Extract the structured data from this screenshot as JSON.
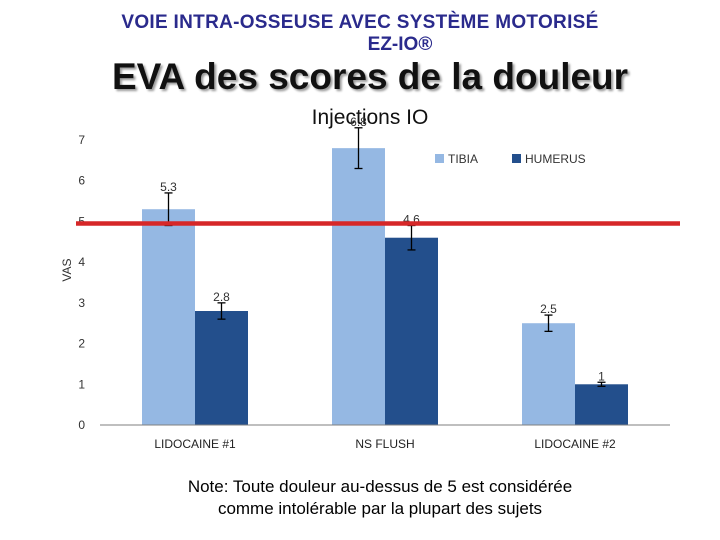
{
  "header": {
    "line1": "VOIE INTRA-OSSEUSE AVEC SYSTÈME MOTORISÉ",
    "line2": "EZ-IO®",
    "title": "EVA des scores de la douleur"
  },
  "note": {
    "line1": "Note:  Toute douleur au-dessus de 5 est considérée",
    "line2": "comme intolérable par la plupart des sujets"
  },
  "chart_data": {
    "type": "bar",
    "title": "Injections IO",
    "xlabel": "",
    "ylabel": "VAS",
    "ylim": [
      0,
      7
    ],
    "yticks": [
      0,
      1,
      2,
      3,
      4,
      5,
      6,
      7
    ],
    "categories": [
      "LIDOCAINE #1",
      "NS FLUSH",
      "LIDOCAINE #2"
    ],
    "series": [
      {
        "name": "TIBIA",
        "values": [
          5.3,
          6.8,
          2.5
        ],
        "errors": [
          0.4,
          0.5,
          0.2
        ],
        "color": "#95b8e3"
      },
      {
        "name": "HUMERUS",
        "values": [
          2.8,
          4.6,
          1.0
        ],
        "errors": [
          0.2,
          0.3,
          0.05
        ],
        "color": "#234f8c"
      }
    ],
    "threshold": {
      "value": 4.95,
      "color": "#d62728"
    },
    "legend": "top-right",
    "grid": false
  }
}
